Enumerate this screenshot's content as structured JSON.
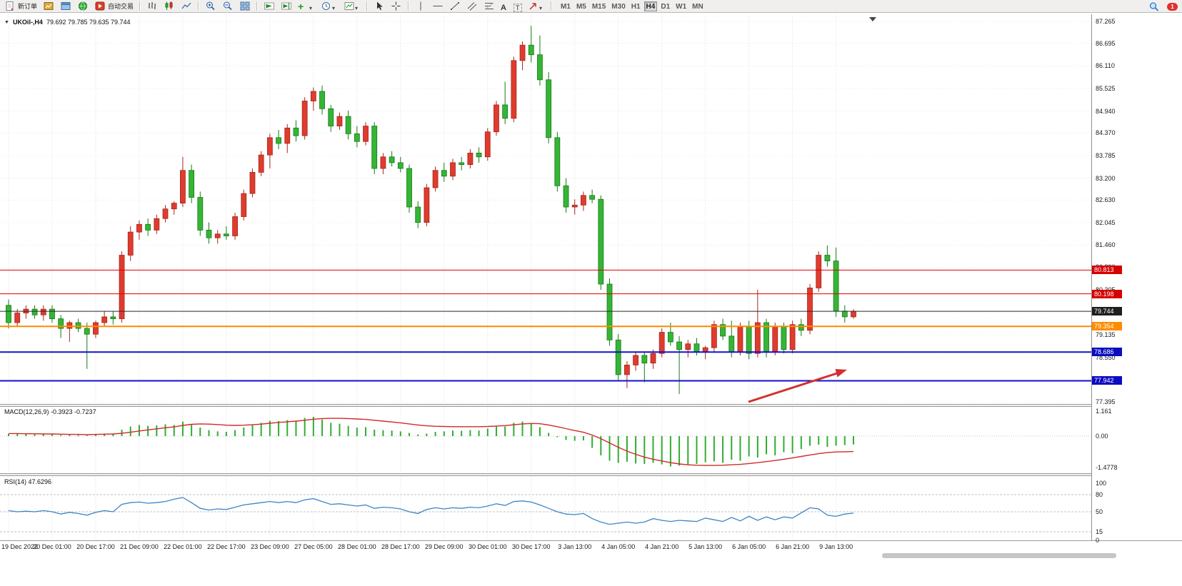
{
  "toolbar": {
    "new_order": "新订单",
    "autotrade": "自动交易",
    "timeframes": [
      "M1",
      "M5",
      "M15",
      "M30",
      "H1",
      "H4",
      "D1",
      "W1",
      "MN"
    ],
    "active_timeframe": "H4",
    "notification_count": "1"
  },
  "chart": {
    "title_symbol": "UKOil-,H4",
    "title_ohlc": "79.692 79.785 79.635 79.744",
    "price_axis_labels": [
      "87.265",
      "86.695",
      "86.110",
      "85.525",
      "84.940",
      "84.370",
      "83.785",
      "83.200",
      "82.630",
      "82.045",
      "81.460",
      "80.890",
      "80.305",
      "79.720",
      "79.135",
      "78.550",
      "77.965",
      "77.395"
    ],
    "time_axis_labels": [
      "19 Dec 2022",
      "20 Dec 01:00",
      "20 Dec 17:00",
      "21 Dec 09:00",
      "22 Dec 01:00",
      "22 Dec 17:00",
      "23 Dec 09:00",
      "27 Dec 05:00",
      "28 Dec 01:00",
      "28 Dec 17:00",
      "29 Dec 09:00",
      "30 Dec 01:00",
      "30 Dec 17:00",
      "3 Jan 13:00",
      "4 Jan 05:00",
      "4 Jan 21:00",
      "5 Jan 13:00",
      "6 Jan 05:00",
      "6 Jan 21:00",
      "9 Jan 13:00"
    ],
    "price_lines": [
      {
        "value": 80.813,
        "label": "80.813",
        "color": "#e00000",
        "tag": "#d50000",
        "width": 1
      },
      {
        "value": 80.198,
        "label": "80.198",
        "color": "#e00000",
        "tag": "#d50000",
        "width": 1
      },
      {
        "value": 79.744,
        "label": "79.744",
        "color": "#2b2b2b",
        "tag": "#1f1f1f",
        "width": 1
      },
      {
        "value": 79.354,
        "label": "79.354",
        "color": "#ff8c00",
        "tag": "#ff8c00",
        "width": 2
      },
      {
        "value": 78.686,
        "label": "78.686",
        "color": "#1212cc",
        "tag": "#0b0bbf",
        "width": 2
      },
      {
        "value": 77.942,
        "label": "77.942",
        "color": "#1212cc",
        "tag": "#0b0bbf",
        "width": 2
      }
    ]
  },
  "chart_data": {
    "type": "candlestick",
    "symbol": "UKOil-",
    "timeframe": "H4",
    "price_range": [
      77.395,
      87.265
    ],
    "colors": {
      "bull": "#df3b2e",
      "bull_border": "#a4271d",
      "bear": "#35b535",
      "bear_border": "#177a17"
    },
    "candles": [
      [
        79.9,
        80.05,
        79.3,
        79.45
      ],
      [
        79.45,
        79.8,
        79.35,
        79.7
      ],
      [
        79.7,
        79.9,
        79.55,
        79.8
      ],
      [
        79.8,
        79.9,
        79.55,
        79.65
      ],
      [
        79.65,
        79.9,
        79.5,
        79.8
      ],
      [
        79.8,
        79.9,
        79.45,
        79.55
      ],
      [
        79.55,
        79.65,
        79.05,
        79.3
      ],
      [
        79.3,
        79.5,
        78.95,
        79.45
      ],
      [
        79.45,
        79.55,
        79.2,
        79.3
      ],
      [
        79.3,
        79.45,
        78.25,
        79.15
      ],
      [
        79.15,
        79.5,
        79.05,
        79.45
      ],
      [
        79.45,
        79.75,
        79.35,
        79.6
      ],
      [
        79.6,
        79.75,
        79.4,
        79.55
      ],
      [
        79.55,
        81.3,
        79.45,
        81.2
      ],
      [
        81.2,
        81.95,
        81.05,
        81.8
      ],
      [
        81.8,
        82.1,
        81.6,
        82.0
      ],
      [
        82.0,
        82.15,
        81.7,
        81.85
      ],
      [
        81.85,
        82.25,
        81.75,
        82.15
      ],
      [
        82.15,
        82.5,
        82.05,
        82.4
      ],
      [
        82.4,
        82.6,
        82.25,
        82.55
      ],
      [
        82.55,
        83.75,
        82.45,
        83.4
      ],
      [
        83.4,
        83.55,
        82.55,
        82.7
      ],
      [
        82.7,
        82.85,
        81.7,
        81.85
      ],
      [
        81.85,
        82.05,
        81.5,
        81.65
      ],
      [
        81.65,
        81.85,
        81.5,
        81.75
      ],
      [
        81.75,
        81.95,
        81.6,
        81.7
      ],
      [
        81.7,
        82.3,
        81.6,
        82.2
      ],
      [
        82.2,
        82.9,
        82.1,
        82.8
      ],
      [
        82.8,
        83.45,
        82.7,
        83.35
      ],
      [
        83.35,
        83.9,
        83.25,
        83.8
      ],
      [
        83.8,
        84.35,
        83.45,
        84.25
      ],
      [
        84.25,
        84.45,
        83.95,
        84.1
      ],
      [
        84.1,
        84.6,
        83.85,
        84.5
      ],
      [
        84.5,
        84.7,
        84.15,
        84.3
      ],
      [
        84.3,
        85.3,
        84.2,
        85.2
      ],
      [
        85.2,
        85.55,
        84.95,
        85.45
      ],
      [
        85.45,
        85.6,
        84.85,
        85.0
      ],
      [
        85.0,
        85.1,
        84.4,
        84.55
      ],
      [
        84.55,
        84.9,
        84.45,
        84.8
      ],
      [
        84.8,
        84.95,
        84.2,
        84.35
      ],
      [
        84.35,
        84.55,
        84.0,
        84.15
      ],
      [
        84.15,
        84.65,
        84.05,
        84.55
      ],
      [
        84.55,
        84.65,
        83.3,
        83.45
      ],
      [
        83.45,
        83.85,
        83.3,
        83.75
      ],
      [
        83.75,
        83.9,
        83.5,
        83.6
      ],
      [
        83.6,
        83.75,
        83.35,
        83.45
      ],
      [
        83.45,
        83.55,
        82.3,
        82.45
      ],
      [
        82.45,
        82.6,
        81.9,
        82.05
      ],
      [
        82.05,
        83.05,
        81.95,
        82.95
      ],
      [
        82.95,
        83.5,
        82.85,
        83.4
      ],
      [
        83.4,
        83.6,
        83.1,
        83.25
      ],
      [
        83.25,
        83.7,
        83.15,
        83.6
      ],
      [
        83.6,
        83.75,
        83.4,
        83.55
      ],
      [
        83.55,
        83.95,
        83.45,
        83.85
      ],
      [
        83.85,
        84.0,
        83.6,
        83.75
      ],
      [
        83.75,
        84.5,
        83.65,
        84.4
      ],
      [
        84.4,
        85.2,
        84.3,
        85.1
      ],
      [
        85.1,
        85.7,
        84.6,
        84.75
      ],
      [
        84.75,
        86.35,
        84.65,
        86.25
      ],
      [
        86.25,
        86.75,
        86.0,
        86.65
      ],
      [
        86.65,
        87.15,
        86.2,
        86.4
      ],
      [
        86.4,
        86.9,
        85.6,
        85.75
      ],
      [
        85.75,
        85.95,
        84.1,
        84.25
      ],
      [
        84.25,
        84.4,
        82.85,
        83.0
      ],
      [
        83.0,
        83.2,
        82.3,
        82.45
      ],
      [
        82.45,
        82.65,
        82.25,
        82.5
      ],
      [
        82.5,
        82.85,
        82.35,
        82.75
      ],
      [
        82.75,
        82.9,
        82.55,
        82.65
      ],
      [
        82.65,
        82.75,
        80.3,
        80.45
      ],
      [
        80.45,
        80.6,
        78.85,
        79.0
      ],
      [
        79.0,
        79.15,
        77.95,
        78.1
      ],
      [
        78.1,
        78.45,
        77.75,
        78.35
      ],
      [
        78.35,
        78.7,
        78.2,
        78.6
      ],
      [
        78.6,
        78.7,
        77.9,
        78.4
      ],
      [
        78.4,
        78.75,
        78.25,
        78.65
      ],
      [
        78.65,
        79.3,
        78.55,
        79.2
      ],
      [
        79.2,
        79.45,
        78.85,
        78.95
      ],
      [
        78.95,
        79.1,
        77.6,
        78.75
      ],
      [
        78.75,
        79.0,
        78.55,
        78.9
      ],
      [
        78.9,
        79.05,
        78.6,
        78.7
      ],
      [
        78.7,
        78.85,
        78.5,
        78.8
      ],
      [
        78.8,
        79.5,
        78.7,
        79.4
      ],
      [
        79.4,
        79.55,
        79.0,
        79.1
      ],
      [
        79.1,
        79.5,
        78.55,
        78.7
      ],
      [
        78.7,
        79.45,
        78.6,
        79.35
      ],
      [
        79.35,
        79.5,
        78.5,
        78.65
      ],
      [
        78.65,
        80.3,
        78.55,
        79.45
      ],
      [
        79.45,
        79.55,
        78.55,
        78.7
      ],
      [
        78.7,
        79.45,
        78.6,
        79.35
      ],
      [
        79.35,
        79.45,
        78.65,
        78.75
      ],
      [
        78.75,
        79.5,
        78.65,
        79.4
      ],
      [
        79.4,
        79.55,
        79.1,
        79.25
      ],
      [
        79.25,
        80.45,
        79.15,
        80.35
      ],
      [
        80.35,
        81.3,
        80.25,
        81.2
      ],
      [
        81.2,
        81.45,
        80.9,
        81.05
      ],
      [
        81.05,
        81.4,
        79.6,
        79.75
      ],
      [
        79.75,
        79.9,
        79.45,
        79.6
      ],
      [
        79.6,
        79.8,
        79.55,
        79.74
      ]
    ],
    "macd": {
      "label": "MACD(12,26,9) -0.3923 -0.7237",
      "scale_labels": [
        "1.161",
        "0.00",
        "-1.4778"
      ],
      "histogram": [
        0.1,
        0.12,
        0.1,
        0.08,
        0.1,
        0.08,
        0.05,
        0.06,
        0.05,
        0.04,
        0.08,
        0.12,
        0.1,
        0.3,
        0.45,
        0.52,
        0.48,
        0.5,
        0.55,
        0.52,
        0.68,
        0.55,
        0.4,
        0.28,
        0.22,
        0.2,
        0.28,
        0.4,
        0.52,
        0.62,
        0.72,
        0.7,
        0.75,
        0.68,
        0.85,
        0.9,
        0.78,
        0.62,
        0.58,
        0.48,
        0.4,
        0.42,
        0.3,
        0.28,
        0.26,
        0.22,
        0.15,
        0.08,
        0.12,
        0.2,
        0.22,
        0.26,
        0.25,
        0.28,
        0.26,
        0.35,
        0.48,
        0.45,
        0.62,
        0.68,
        0.6,
        0.42,
        0.15,
        -0.05,
        -0.18,
        -0.22,
        -0.2,
        -0.55,
        -0.9,
        -1.15,
        -1.25,
        -1.2,
        -1.28,
        -1.3,
        -1.25,
        -1.32,
        -1.42,
        -1.38,
        -1.35,
        -1.3,
        -1.22,
        -1.18,
        -1.25,
        -1.1,
        -1.15,
        -0.95,
        -1.0,
        -0.85,
        -0.9,
        -0.75,
        -0.8,
        -0.6,
        -0.45,
        -0.4,
        -0.5,
        -0.45,
        -0.42,
        -0.39
      ],
      "signal": [
        0.12,
        0.12,
        0.11,
        0.11,
        0.1,
        0.1,
        0.09,
        0.08,
        0.08,
        0.07,
        0.08,
        0.09,
        0.1,
        0.13,
        0.18,
        0.24,
        0.29,
        0.34,
        0.39,
        0.43,
        0.5,
        0.55,
        0.57,
        0.56,
        0.54,
        0.51,
        0.5,
        0.51,
        0.53,
        0.56,
        0.6,
        0.64,
        0.67,
        0.7,
        0.74,
        0.79,
        0.82,
        0.83,
        0.83,
        0.82,
        0.8,
        0.78,
        0.74,
        0.7,
        0.66,
        0.62,
        0.57,
        0.52,
        0.48,
        0.46,
        0.45,
        0.44,
        0.44,
        0.44,
        0.44,
        0.45,
        0.47,
        0.49,
        0.53,
        0.57,
        0.59,
        0.58,
        0.52,
        0.44,
        0.35,
        0.26,
        0.18,
        0.05,
        -0.12,
        -0.32,
        -0.52,
        -0.7,
        -0.85,
        -0.98,
        -1.08,
        -1.16,
        -1.24,
        -1.3,
        -1.34,
        -1.36,
        -1.37,
        -1.37,
        -1.36,
        -1.34,
        -1.32,
        -1.28,
        -1.24,
        -1.19,
        -1.14,
        -1.08,
        -1.02,
        -0.95,
        -0.88,
        -0.82,
        -0.77,
        -0.74,
        -0.73,
        -0.72
      ]
    },
    "rsi": {
      "label": "RSI(14) 47.6296",
      "scale_labels": [
        "100",
        "80",
        "50",
        "15",
        "0"
      ],
      "levels": [
        80,
        50,
        15
      ],
      "values": [
        52,
        50,
        51,
        50,
        52,
        50,
        46,
        49,
        47,
        44,
        49,
        52,
        50,
        63,
        66,
        67,
        65,
        66,
        68,
        72,
        75,
        66,
        56,
        53,
        55,
        54,
        58,
        62,
        64,
        66,
        68,
        66,
        68,
        66,
        71,
        73,
        68,
        63,
        64,
        62,
        60,
        62,
        56,
        58,
        57,
        55,
        50,
        47,
        54,
        57,
        55,
        57,
        56,
        58,
        57,
        60,
        64,
        61,
        68,
        69,
        67,
        62,
        56,
        50,
        46,
        45,
        47,
        38,
        32,
        28,
        30,
        32,
        30,
        32,
        38,
        35,
        33,
        35,
        34,
        33,
        39,
        36,
        33,
        40,
        34,
        42,
        35,
        41,
        36,
        41,
        39,
        48,
        57,
        55,
        44,
        42,
        46,
        47.6
      ]
    }
  },
  "annotation": {
    "arrow_color": "#d32f2f"
  }
}
